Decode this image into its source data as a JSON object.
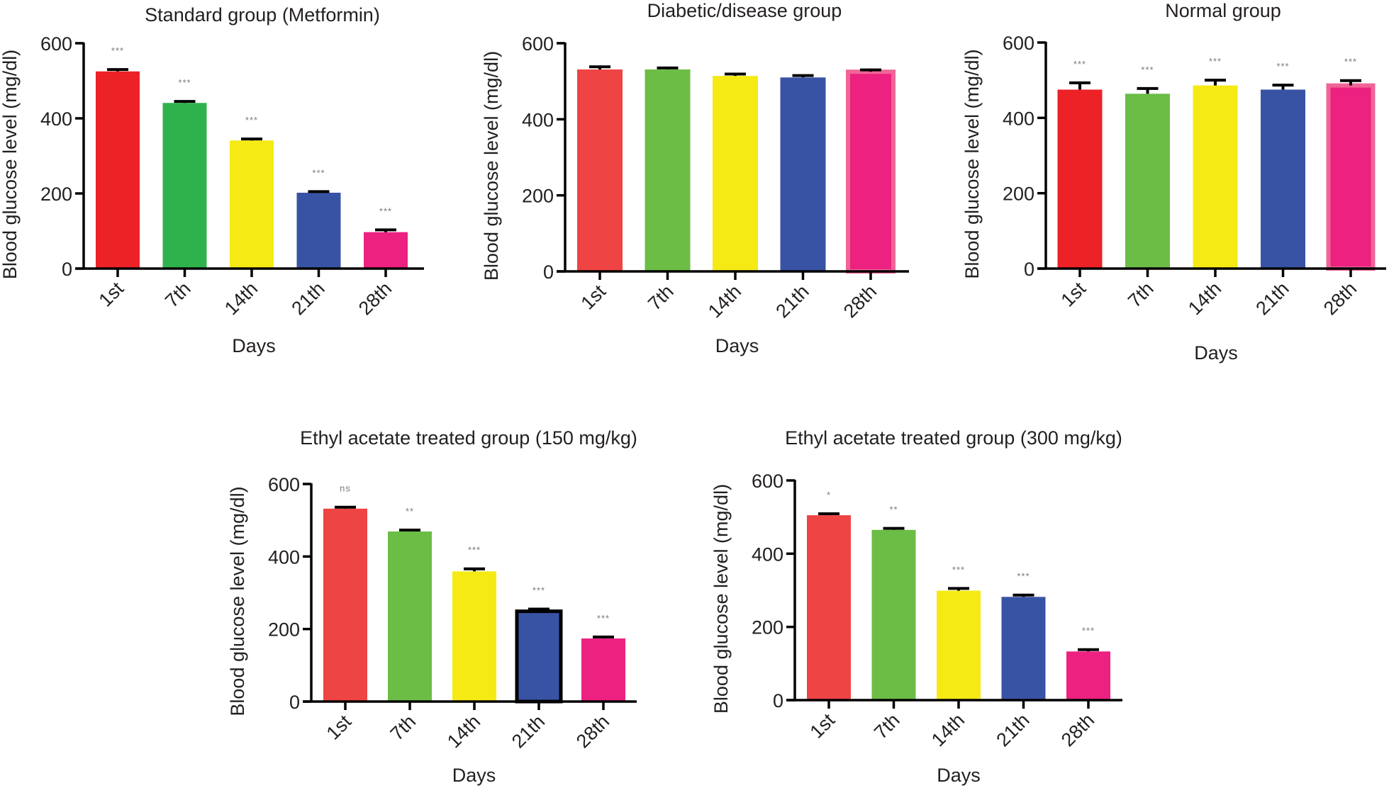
{
  "chart_data": [
    {
      "type": "bar",
      "id": "standard",
      "title": "Standard group (Metformin)",
      "xlabel": "Days",
      "ylabel": "Blood glucose level (mg/dl)",
      "ylim": [
        0,
        600
      ],
      "yticks": [
        0,
        200,
        400,
        600
      ],
      "categories": [
        "1st",
        "7th",
        "14th",
        "21th",
        "28th"
      ],
      "values": [
        525,
        441,
        341,
        202,
        97
      ],
      "errors": [
        5,
        4,
        4,
        3,
        6
      ],
      "significance": [
        "***",
        "***",
        "***",
        "***",
        "***"
      ],
      "colors": [
        "#ec2227",
        "#2fb24b",
        "#f5ea14",
        "#3953a4",
        "#ec2180"
      ]
    },
    {
      "type": "bar",
      "id": "diabetic",
      "title": "Diabetic/disease group",
      "xlabel": "Days",
      "ylabel": "Blood glucose level (mg/dl)",
      "ylim": [
        0,
        600
      ],
      "yticks": [
        0,
        200,
        400,
        600
      ],
      "categories": [
        "1st",
        "7th",
        "14th",
        "21th",
        "28th"
      ],
      "values": [
        531,
        531,
        514,
        510,
        525
      ],
      "errors": [
        7,
        4,
        5,
        5,
        5
      ],
      "significance": [
        "",
        "",
        "",
        "",
        ""
      ],
      "colors": [
        "#ef4444",
        "#6bbd45",
        "#f5ea14",
        "#3953a4",
        "#ec2180"
      ]
    },
    {
      "type": "bar",
      "id": "normal",
      "title": "Normal group",
      "xlabel": "Days",
      "ylabel": "Blood glucose level (mg/dl)",
      "ylim": [
        0,
        600
      ],
      "yticks": [
        0,
        200,
        400,
        600
      ],
      "categories": [
        "1st",
        "7th",
        "14th",
        "21th",
        "28th"
      ],
      "values": [
        475,
        464,
        486,
        475,
        486
      ],
      "errors": [
        18,
        14,
        14,
        12,
        13
      ],
      "significance": [
        "***",
        "***",
        "***",
        "***",
        "***"
      ],
      "colors": [
        "#ec2227",
        "#6bbd45",
        "#f5ea14",
        "#3953a4",
        "#ec2180"
      ]
    },
    {
      "type": "bar",
      "id": "ethyl150",
      "title": "Ethyl acetate treated group (150 mg/kg)",
      "xlabel": "Days",
      "ylabel": "Blood glucose level (mg/dl)",
      "ylim": [
        0,
        600
      ],
      "yticks": [
        0,
        200,
        400,
        600
      ],
      "categories": [
        "1st",
        "7th",
        "14th",
        "21th",
        "28th"
      ],
      "values": [
        532,
        469,
        359,
        249,
        174
      ],
      "errors": [
        4,
        4,
        7,
        6,
        4
      ],
      "significance": [
        "ns",
        "**",
        "***",
        "***",
        "***"
      ],
      "colors": [
        "#ef4444",
        "#6bbd45",
        "#f5ea14",
        "#3953a4",
        "#ec2180"
      ]
    },
    {
      "type": "bar",
      "id": "ethyl300",
      "title": "Ethyl acetate treated group (300 mg/kg)",
      "xlabel": "Days",
      "ylabel": "Blood glucose level (mg/dl)",
      "ylim": [
        0,
        600
      ],
      "yticks": [
        0,
        200,
        400,
        600
      ],
      "categories": [
        "1st",
        "7th",
        "14th",
        "21th",
        "28th"
      ],
      "values": [
        505,
        465,
        299,
        282,
        133
      ],
      "errors": [
        4,
        4,
        6,
        5,
        5
      ],
      "significance": [
        "*",
        "**",
        "***",
        "***",
        "***"
      ],
      "colors": [
        "#ef4444",
        "#6bbd45",
        "#f5ea14",
        "#3953a4",
        "#ec2180"
      ]
    }
  ]
}
